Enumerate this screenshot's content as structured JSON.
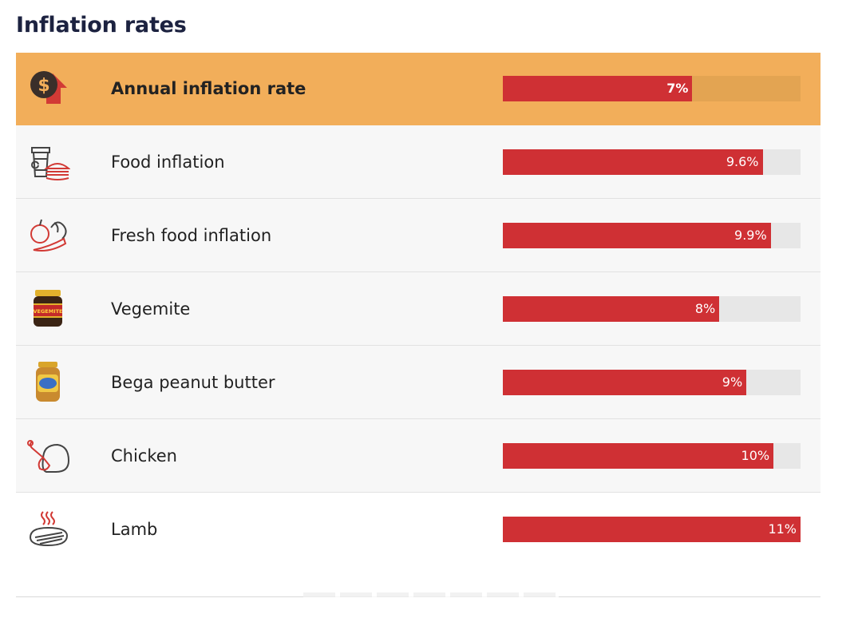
{
  "title": "Inflation rates",
  "accent_color": "#cf3034",
  "highlight_color": "#f2ae5a",
  "chart_data": {
    "type": "bar",
    "orientation": "horizontal",
    "title": "Inflation rates",
    "xlim": [
      0,
      11
    ],
    "categories": [
      "Annual inflation rate",
      "Food inflation",
      "Fresh food inflation",
      "Vegemite",
      "Bega peanut butter",
      "Chicken",
      "Lamb"
    ],
    "values": [
      7,
      9.6,
      9.9,
      8,
      9,
      10,
      11
    ],
    "value_labels": [
      "7%",
      "9.6%",
      "9.9%",
      "8%",
      "9%",
      "10%",
      "11%"
    ],
    "icons": [
      "dollar-arrow-icon",
      "coffee-burger-icon",
      "fruit-vegetable-icon",
      "vegemite-jar-icon",
      "peanut-butter-jar-icon",
      "roast-chicken-icon",
      "steak-icon"
    ]
  }
}
